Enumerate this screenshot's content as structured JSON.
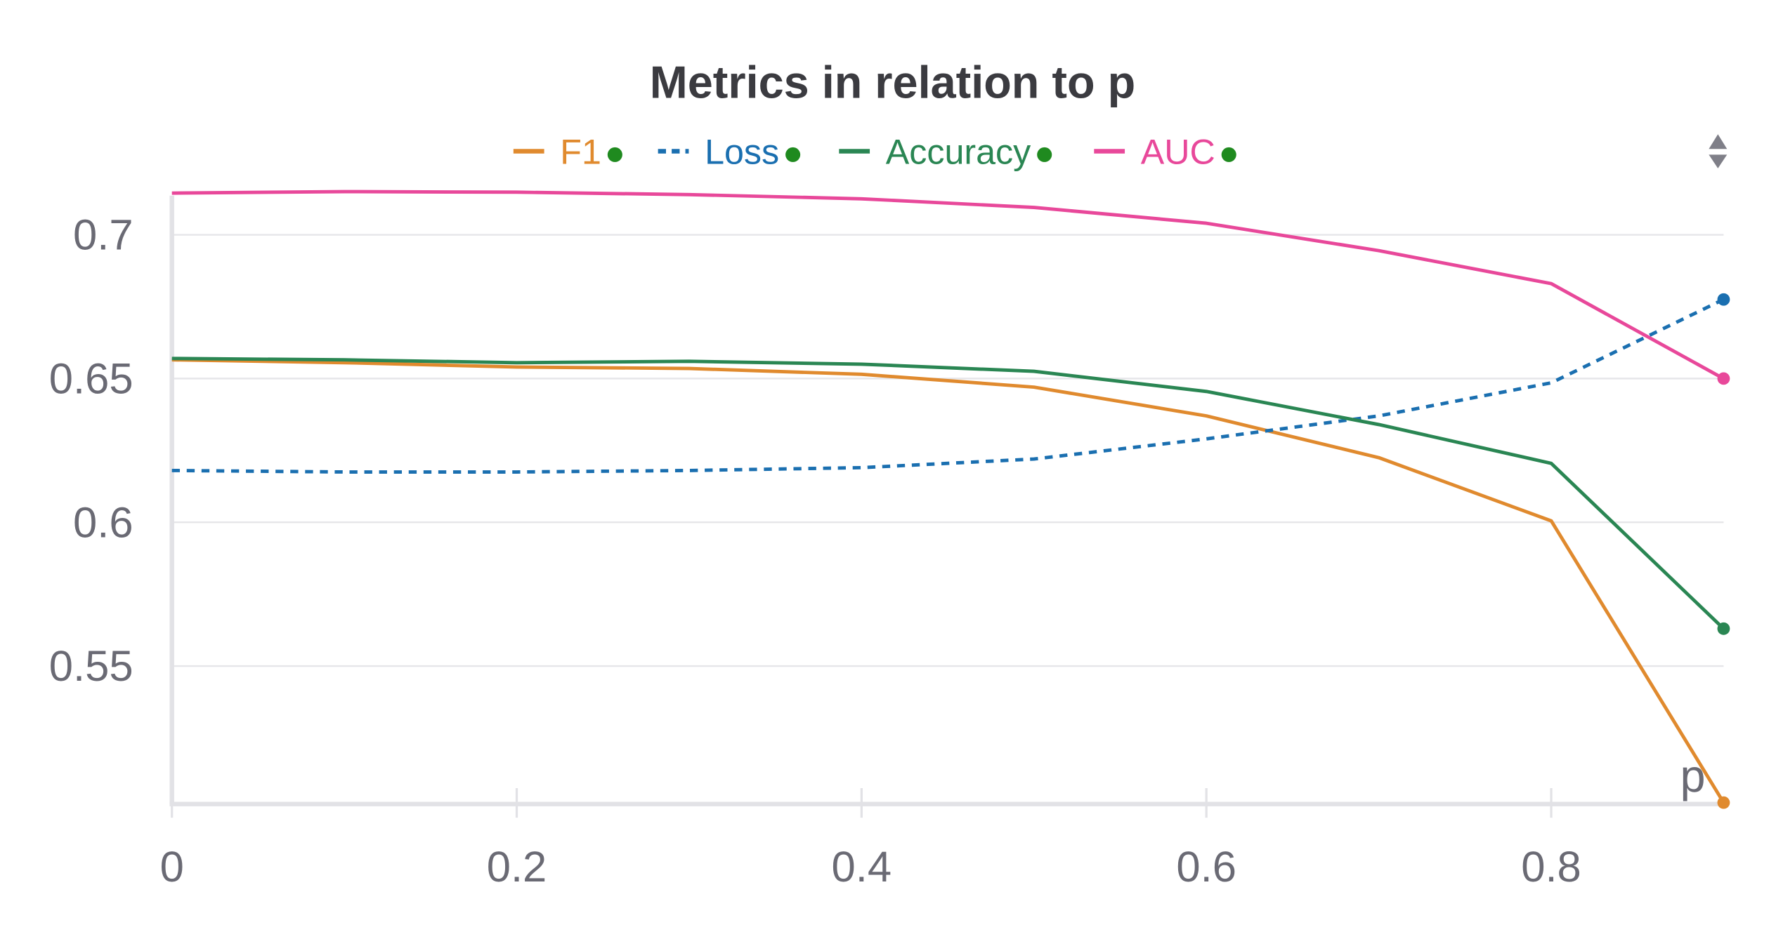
{
  "chart_data": {
    "type": "line",
    "title": "Metrics in relation to p",
    "xlabel": "p",
    "ylabel": "",
    "xlim": [
      0,
      0.9
    ],
    "ylim": [
      0.502,
      0.716
    ],
    "x_ticks": [
      {
        "value": 0,
        "label": "0"
      },
      {
        "value": 0.2,
        "label": "0.2"
      },
      {
        "value": 0.4,
        "label": "0.4"
      },
      {
        "value": 0.6,
        "label": "0.6"
      },
      {
        "value": 0.8,
        "label": "0.8"
      }
    ],
    "y_ticks": [
      {
        "value": 0.55,
        "label": "0.55"
      },
      {
        "value": 0.6,
        "label": "0.6"
      },
      {
        "value": 0.65,
        "label": "0.65"
      },
      {
        "value": 0.7,
        "label": "0.7"
      }
    ],
    "grid": true,
    "legend_position": "top-center",
    "x": [
      0,
      0.1,
      0.2,
      0.3,
      0.4,
      0.5,
      0.6,
      0.7,
      0.8,
      0.9
    ],
    "series": [
      {
        "name": "F1",
        "color": "#e08a2e",
        "dashed": false,
        "values": [
          0.6565,
          0.6555,
          0.654,
          0.6535,
          0.6515,
          0.647,
          0.637,
          0.6225,
          0.6005,
          0.5025
        ]
      },
      {
        "name": "Loss",
        "color": "#1a6fb0",
        "dashed": true,
        "values": [
          0.618,
          0.6175,
          0.6175,
          0.618,
          0.619,
          0.622,
          0.629,
          0.637,
          0.6485,
          0.6775
        ]
      },
      {
        "name": "Accuracy",
        "color": "#2a8653",
        "dashed": false,
        "values": [
          0.657,
          0.6565,
          0.6555,
          0.656,
          0.655,
          0.6525,
          0.6455,
          0.634,
          0.6205,
          0.563
        ]
      },
      {
        "name": "AUC",
        "color": "#e8489a",
        "dashed": false,
        "values": [
          0.7145,
          0.715,
          0.7148,
          0.714,
          0.7125,
          0.7095,
          0.704,
          0.6945,
          0.683,
          0.65
        ]
      }
    ]
  },
  "legend_status_color": "#1f8a1f",
  "scroll_control_icon": "sort-up-down-icon"
}
